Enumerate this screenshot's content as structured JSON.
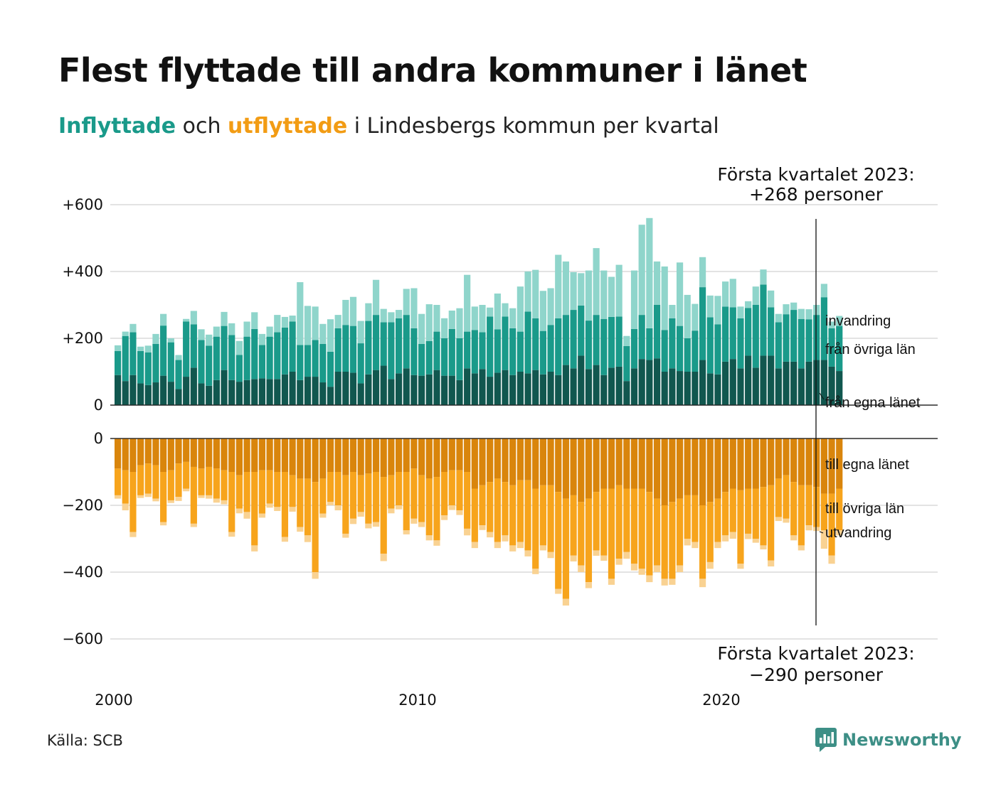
{
  "title": "Flest flyttade till andra kommuner i länet",
  "subtitle": {
    "in_word": "Inflyttade",
    "and_word": " och ",
    "out_word": "utflyttade",
    "rest": " i Lindesbergs kommun per kvartal"
  },
  "colors": {
    "in_egna": "#11574f",
    "in_ovriga": "#1a9a8a",
    "in_invandring": "#8fd5cb",
    "out_egna": "#d9850c",
    "out_ovriga": "#f7a41c",
    "out_utvandring": "#f9d292",
    "grid": "#e3e3e3"
  },
  "source": "Källa: SCB",
  "brand": {
    "name": "Newsworthy",
    "icon": "newsworthy-logo-icon"
  },
  "chart_data": {
    "type": "bar",
    "stacked": true,
    "x_start_year": 2000,
    "period": "quarter",
    "x_ticks": [
      "2000",
      "2010",
      "2020"
    ],
    "upper": {
      "y_ticks": [
        "+600",
        "+400",
        "+200",
        "0"
      ],
      "ylim": [
        0,
        600
      ],
      "annotation": {
        "line1": "Första kvartalet 2023:",
        "line2": "+268 personer"
      },
      "series": [
        {
          "name": "från egna länet",
          "values": [
            90,
            72,
            90,
            65,
            60,
            68,
            88,
            70,
            48,
            85,
            112,
            65,
            58,
            75,
            105,
            75,
            70,
            75,
            78,
            80,
            78,
            78,
            92,
            100,
            75,
            85,
            85,
            68,
            55,
            100,
            100,
            97,
            65,
            92,
            105,
            118,
            78,
            95,
            110,
            90,
            88,
            92,
            105,
            88,
            88,
            75,
            110,
            95,
            108,
            85,
            97,
            105,
            90,
            100,
            95,
            105,
            92,
            100,
            90,
            120,
            110,
            148,
            108,
            120,
            90,
            112,
            115,
            72,
            110,
            138,
            135,
            140,
            100,
            110,
            102,
            100,
            100,
            135,
            95,
            92,
            130,
            138,
            110,
            148,
            112,
            148,
            148,
            110,
            130,
            130,
            110,
            130,
            135,
            135,
            115,
            102
          ]
        },
        {
          "name": "från övriga län",
          "values": [
            72,
            135,
            128,
            97,
            98,
            115,
            150,
            118,
            87,
            165,
            130,
            130,
            120,
            130,
            132,
            135,
            80,
            130,
            150,
            100,
            127,
            140,
            140,
            150,
            105,
            95,
            110,
            115,
            105,
            130,
            140,
            140,
            120,
            160,
            165,
            130,
            170,
            165,
            160,
            140,
            95,
            100,
            115,
            112,
            140,
            125,
            110,
            130,
            110,
            180,
            130,
            160,
            140,
            120,
            185,
            155,
            130,
            140,
            170,
            150,
            175,
            150,
            145,
            150,
            168,
            152,
            150,
            105,
            118,
            132,
            95,
            160,
            125,
            150,
            135,
            100,
            123,
            218,
            168,
            150,
            165,
            155,
            150,
            143,
            188,
            213,
            145,
            138,
            142,
            155,
            148,
            127,
            135,
            188,
            115,
            135
          ]
        },
        {
          "name": "invandring",
          "values": [
            17,
            13,
            25,
            13,
            20,
            30,
            35,
            12,
            15,
            8,
            40,
            32,
            33,
            30,
            42,
            35,
            42,
            45,
            50,
            33,
            30,
            52,
            32,
            18,
            188,
            117,
            100,
            60,
            97,
            40,
            75,
            87,
            67,
            53,
            105,
            40,
            30,
            25,
            78,
            120,
            90,
            110,
            80,
            60,
            55,
            90,
            170,
            70,
            82,
            27,
            107,
            40,
            60,
            135,
            120,
            145,
            120,
            110,
            190,
            160,
            113,
            97,
            150,
            200,
            145,
            120,
            155,
            30,
            175,
            270,
            330,
            130,
            190,
            40,
            190,
            130,
            80,
            90,
            65,
            85,
            75,
            85,
            35,
            20,
            55,
            45,
            50,
            25,
            30,
            22,
            30,
            30,
            30,
            40,
            20,
            30
          ]
        }
      ]
    },
    "lower": {
      "y_ticks": [
        "0",
        "−200",
        "−400",
        "−600"
      ],
      "ylim": [
        -600,
        0
      ],
      "annotation": {
        "line1": "Första kvartalet 2023:",
        "line2": "−290 personer"
      },
      "series": [
        {
          "name": "till egna länet",
          "values": [
            -90,
            -95,
            -100,
            -80,
            -75,
            -80,
            -100,
            -95,
            -75,
            -70,
            -85,
            -90,
            -85,
            -90,
            -95,
            -100,
            -110,
            -100,
            -100,
            -95,
            -95,
            -100,
            -100,
            -110,
            -120,
            -120,
            -130,
            -120,
            -100,
            -100,
            -110,
            -100,
            -110,
            -105,
            -100,
            -115,
            -110,
            -100,
            -100,
            -90,
            -110,
            -120,
            -115,
            -100,
            -95,
            -95,
            -100,
            -150,
            -140,
            -130,
            -120,
            -130,
            -140,
            -125,
            -125,
            -150,
            -140,
            -140,
            -160,
            -180,
            -170,
            -190,
            -180,
            -160,
            -150,
            -150,
            -140,
            -150,
            -150,
            -150,
            -160,
            -180,
            -200,
            -190,
            -180,
            -170,
            -170,
            -200,
            -190,
            -180,
            -160,
            -150,
            -155,
            -150,
            -150,
            -145,
            -140,
            -120,
            -110,
            -130,
            -140,
            -140,
            -145,
            -165,
            -165,
            -150
          ]
        },
        {
          "name": "till övriga län",
          "values": [
            -80,
            -100,
            -180,
            -90,
            -90,
            -100,
            -150,
            -90,
            -100,
            -80,
            -170,
            -80,
            -85,
            -90,
            -90,
            -180,
            -100,
            -120,
            -220,
            -130,
            -100,
            -105,
            -195,
            -95,
            -145,
            -170,
            -270,
            -105,
            -90,
            -100,
            -175,
            -140,
            -110,
            -150,
            -150,
            -230,
            -100,
            -100,
            -175,
            -150,
            -140,
            -170,
            -190,
            -130,
            -105,
            -120,
            -170,
            -160,
            -120,
            -150,
            -190,
            -160,
            -180,
            -185,
            -210,
            -240,
            -180,
            -200,
            -290,
            -300,
            -180,
            -190,
            -250,
            -175,
            -200,
            -270,
            -220,
            -190,
            -225,
            -240,
            -250,
            -200,
            -220,
            -230,
            -200,
            -130,
            -140,
            -220,
            -180,
            -130,
            -130,
            -130,
            -220,
            -135,
            -150,
            -175,
            -225,
            -115,
            -130,
            -160,
            -180,
            -120,
            -120,
            -110,
            -185,
            -125
          ]
        },
        {
          "name": "utvandring",
          "values": [
            -10,
            -20,
            -15,
            -8,
            -10,
            -8,
            -10,
            -8,
            -12,
            -8,
            -10,
            -8,
            -10,
            -12,
            -12,
            -14,
            -14,
            -20,
            -18,
            -12,
            -12,
            -12,
            -14,
            -14,
            -14,
            -20,
            -20,
            -12,
            -10,
            -15,
            -12,
            -16,
            -14,
            -14,
            -14,
            -22,
            -14,
            -12,
            -12,
            -15,
            -15,
            -15,
            -16,
            -14,
            -14,
            -14,
            -20,
            -18,
            -14,
            -16,
            -18,
            -18,
            -18,
            -18,
            -18,
            -16,
            -15,
            -18,
            -15,
            -20,
            -18,
            -20,
            -18,
            -16,
            -16,
            -18,
            -18,
            -20,
            -20,
            -18,
            -20,
            -20,
            -20,
            -18,
            -20,
            -20,
            -18,
            -25,
            -20,
            -18,
            -18,
            -20,
            -15,
            -16,
            -12,
            -12,
            -18,
            -12,
            -12,
            -15,
            -15,
            -15,
            -12,
            -55,
            -25,
            -15
          ]
        }
      ]
    },
    "series_labels": {
      "upper": [
        "invandring",
        "från övriga län",
        "från egna länet"
      ],
      "lower": [
        "till egna länet",
        "till övriga län",
        "utvandring"
      ]
    }
  }
}
